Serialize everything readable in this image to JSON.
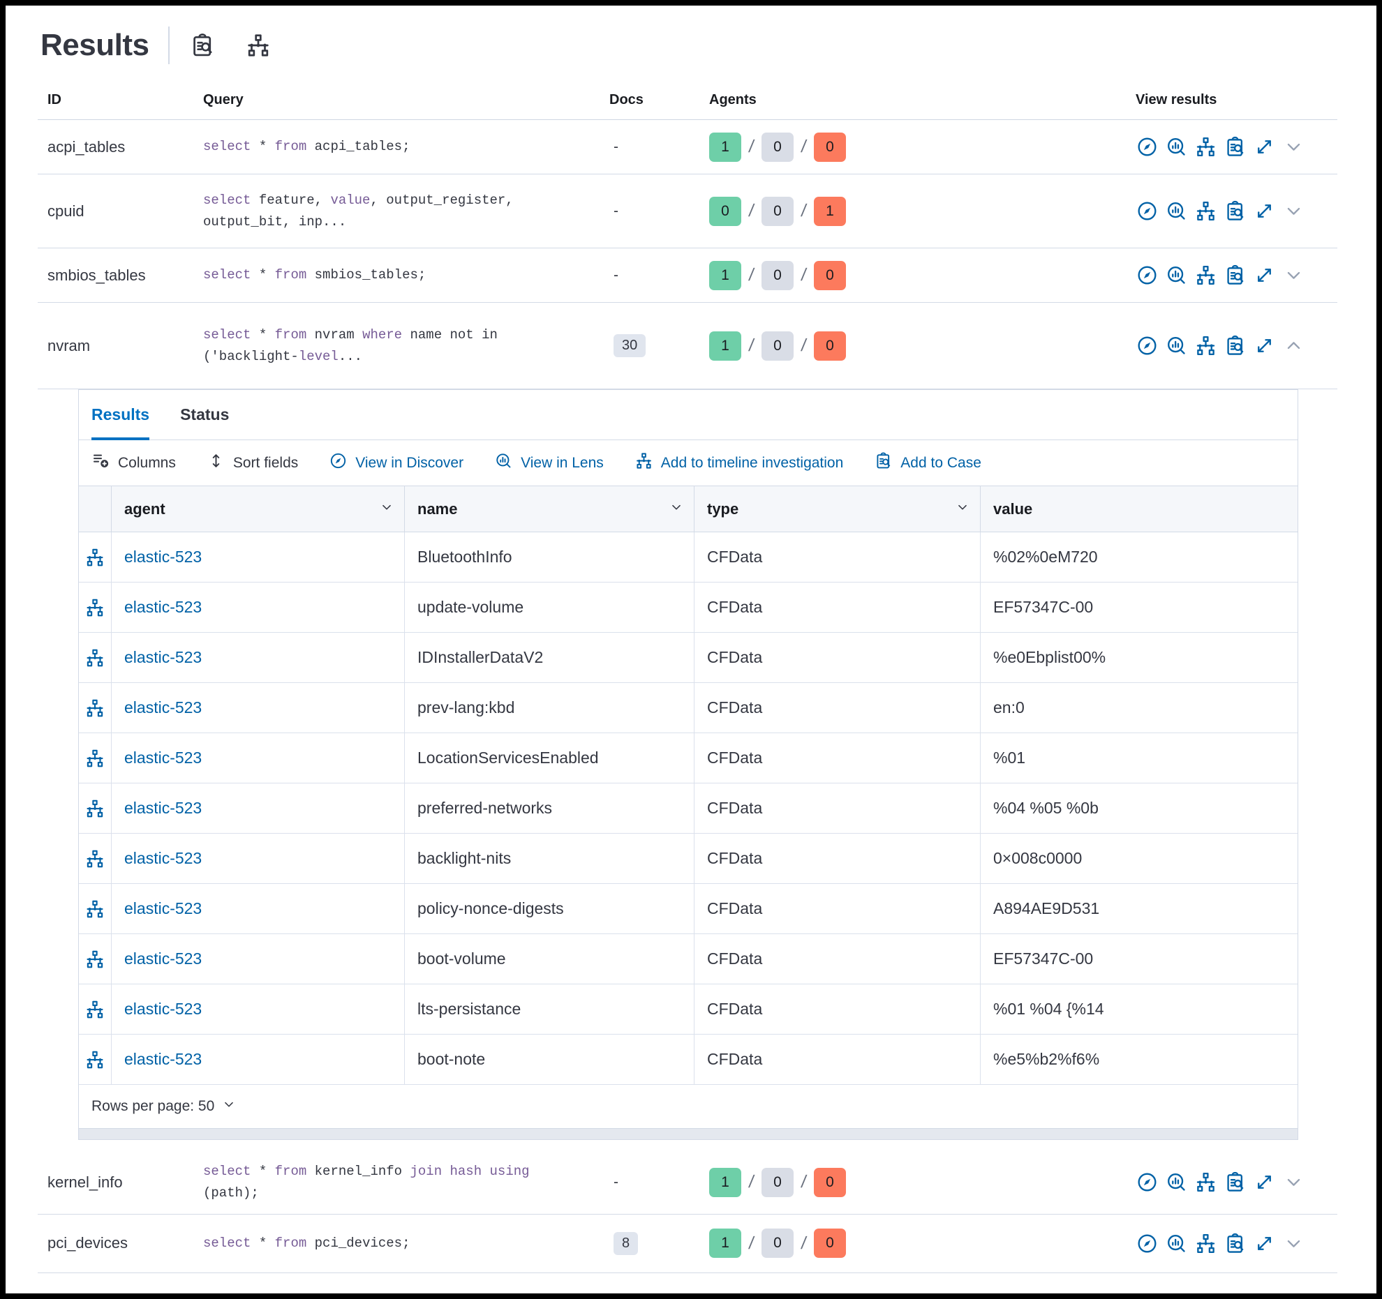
{
  "app": {
    "title": "Results"
  },
  "header_icons": [
    {
      "name": "inspect-icon"
    },
    {
      "name": "timeline-icon"
    }
  ],
  "table": {
    "columns": [
      "ID",
      "Query",
      "Docs",
      "Agents",
      "View results"
    ],
    "rows": [
      {
        "id": "acpi_tables",
        "docs": {
          "badge": false,
          "text": "-"
        },
        "agents": {
          "ok": "1",
          "pending": "0",
          "failed": "0"
        },
        "expanded": false,
        "size": "row-acpi",
        "query": [
          {
            "kw": true,
            "t": "select"
          },
          {
            "kw": false,
            "t": " * "
          },
          {
            "kw": true,
            "t": "from"
          },
          {
            "kw": false,
            "t": " acpi_tables;"
          }
        ]
      },
      {
        "id": "cpuid",
        "docs": {
          "badge": false,
          "text": "-"
        },
        "agents": {
          "ok": "0",
          "pending": "0",
          "failed": "1"
        },
        "expanded": false,
        "size": "row-2line",
        "query": [
          {
            "kw": true,
            "t": "select"
          },
          {
            "kw": false,
            "t": " feature, "
          },
          {
            "kw": true,
            "t": "value"
          },
          {
            "kw": false,
            "t": ", output_register, output_bit, inp..."
          }
        ]
      },
      {
        "id": "smbios_tables",
        "docs": {
          "badge": false,
          "text": "-"
        },
        "agents": {
          "ok": "1",
          "pending": "0",
          "failed": "0"
        },
        "expanded": false,
        "size": "row-smbios",
        "query": [
          {
            "kw": true,
            "t": "select"
          },
          {
            "kw": false,
            "t": " * "
          },
          {
            "kw": true,
            "t": "from"
          },
          {
            "kw": false,
            "t": " smbios_tables;"
          }
        ]
      },
      {
        "id": "nvram",
        "docs": {
          "badge": true,
          "text": "30"
        },
        "agents": {
          "ok": "1",
          "pending": "0",
          "failed": "0"
        },
        "expanded": true,
        "size": "row-nvram",
        "query": [
          {
            "kw": true,
            "t": "select"
          },
          {
            "kw": false,
            "t": " * "
          },
          {
            "kw": true,
            "t": "from"
          },
          {
            "kw": false,
            "t": " nvram "
          },
          {
            "kw": true,
            "t": "where"
          },
          {
            "kw": false,
            "t": " name not in ('backlight-"
          },
          {
            "kw": true,
            "t": "level"
          },
          {
            "kw": false,
            "t": "..."
          }
        ]
      },
      {
        "id": "kernel_info",
        "docs": {
          "badge": false,
          "text": "-"
        },
        "agents": {
          "ok": "1",
          "pending": "0",
          "failed": "0"
        },
        "expanded": false,
        "size": "row-kernel",
        "query": [
          {
            "kw": true,
            "t": "select"
          },
          {
            "kw": false,
            "t": " * "
          },
          {
            "kw": true,
            "t": "from"
          },
          {
            "kw": false,
            "t": " kernel_info "
          },
          {
            "kw": true,
            "t": "join"
          },
          {
            "kw": false,
            "t": " "
          },
          {
            "kw": true,
            "t": "hash"
          },
          {
            "kw": false,
            "t": " "
          },
          {
            "kw": true,
            "t": "using"
          },
          {
            "kw": false,
            "t": " (path);"
          }
        ]
      },
      {
        "id": "pci_devices",
        "docs": {
          "badge": true,
          "text": "8"
        },
        "agents": {
          "ok": "1",
          "pending": "0",
          "failed": "0"
        },
        "expanded": false,
        "size": "row-pci",
        "query": [
          {
            "kw": true,
            "t": "select"
          },
          {
            "kw": false,
            "t": " * "
          },
          {
            "kw": true,
            "t": "from"
          },
          {
            "kw": false,
            "t": " pci_devices;"
          }
        ]
      }
    ]
  },
  "row_actions": [
    {
      "name": "discover-icon"
    },
    {
      "name": "lens-icon"
    },
    {
      "name": "timeline-icon"
    },
    {
      "name": "case-icon"
    },
    {
      "name": "expand-icon"
    }
  ],
  "panel": {
    "tabs": [
      {
        "label": "Results",
        "active": true
      },
      {
        "label": "Status",
        "active": false
      }
    ],
    "toolbar": [
      {
        "label": "Columns",
        "icon": "columns-icon",
        "primary": false
      },
      {
        "label": "Sort fields",
        "icon": "sort-icon",
        "primary": false
      },
      {
        "label": "View in Discover",
        "icon": "discover-icon",
        "primary": true
      },
      {
        "label": "View in Lens",
        "icon": "lens-icon",
        "primary": true
      },
      {
        "label": "Add to timeline investigation",
        "icon": "timeline-icon",
        "primary": true
      },
      {
        "label": "Add to Case",
        "icon": "case-icon",
        "primary": true
      }
    ],
    "grid": {
      "columns": [
        {
          "label": "agent",
          "sortable": true
        },
        {
          "label": "name",
          "sortable": true
        },
        {
          "label": "type",
          "sortable": true
        },
        {
          "label": "value",
          "sortable": false
        }
      ],
      "rows": [
        {
          "agent": "elastic-523",
          "name": "BluetoothInfo",
          "type": "CFData",
          "value": "%02%0eM720"
        },
        {
          "agent": "elastic-523",
          "name": "update-volume",
          "type": "CFData",
          "value": "EF57347C-00"
        },
        {
          "agent": "elastic-523",
          "name": "IDInstallerDataV2",
          "type": "CFData",
          "value": "%e0Ebplist00%"
        },
        {
          "agent": "elastic-523",
          "name": "prev-lang:kbd",
          "type": "CFData",
          "value": "en:0"
        },
        {
          "agent": "elastic-523",
          "name": "LocationServicesEnabled",
          "type": "CFData",
          "value": "%01"
        },
        {
          "agent": "elastic-523",
          "name": "preferred-networks",
          "type": "CFData",
          "value": "%04 %05 %0b"
        },
        {
          "agent": "elastic-523",
          "name": "backlight-nits",
          "type": "CFData",
          "value": "0×008c0000"
        },
        {
          "agent": "elastic-523",
          "name": "policy-nonce-digests",
          "type": "CFData",
          "value": "A894AE9D531"
        },
        {
          "agent": "elastic-523",
          "name": "boot-volume",
          "type": "CFData",
          "value": "EF57347C-00"
        },
        {
          "agent": "elastic-523",
          "name": "lts-persistance",
          "type": "CFData",
          "value": "%01 %04 {%14"
        },
        {
          "agent": "elastic-523",
          "name": "boot-note",
          "type": "CFData",
          "value": "%e5%b2%f6%"
        }
      ]
    },
    "footer": {
      "rows_per_page": "Rows per page: 50"
    }
  },
  "colors": {
    "primary_link": "#0061a6",
    "tab_active": "#0071c2",
    "keyword": "#765b96",
    "agents_ok": "#6ecfa8",
    "agents_pending": "#d9dde6",
    "agents_failed": "#fc7a5d"
  }
}
